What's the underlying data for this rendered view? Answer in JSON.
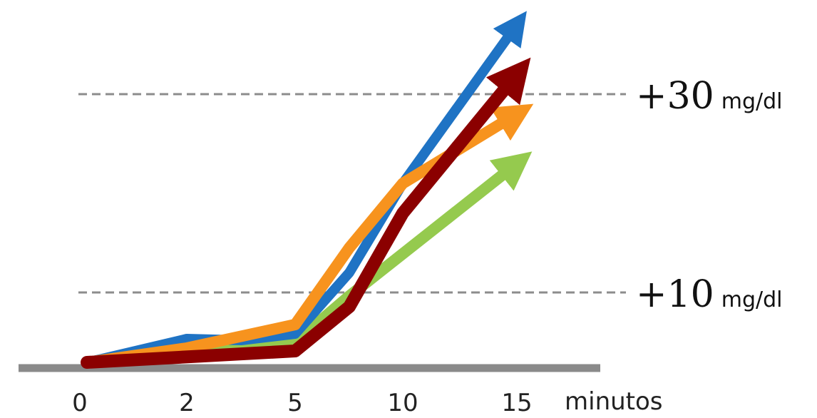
{
  "chart_data": {
    "type": "line",
    "title": "",
    "xlabel": "minutos",
    "ylabel": "",
    "x_ticks": [
      "0",
      "2",
      "5",
      "10",
      "15"
    ],
    "reference_lines": [
      {
        "value": 10,
        "num_text": "+10",
        "unit_text": "mg/dl"
      },
      {
        "value": 30,
        "num_text": "+30",
        "unit_text": "mg/dl"
      }
    ],
    "series": [
      {
        "color": "#1f73c4",
        "points": [
          [
            0,
            0
          ],
          [
            2,
            3.5
          ],
          [
            3,
            3.3
          ],
          [
            5,
            4.2
          ],
          [
            8,
            12
          ],
          [
            10,
            21
          ],
          [
            15,
            37
          ]
        ]
      },
      {
        "color": "#f7931e",
        "points": [
          [
            0,
            0
          ],
          [
            2,
            2.2
          ],
          [
            5,
            5.5
          ],
          [
            8,
            14.5
          ],
          [
            10,
            21
          ],
          [
            15,
            28
          ]
        ]
      },
      {
        "color": "#8dc63f",
        "points": [
          [
            0,
            0
          ],
          [
            2,
            2
          ],
          [
            5,
            3
          ],
          [
            8,
            9.5
          ],
          [
            15,
            23
          ]
        ]
      },
      {
        "color": "#8b0000",
        "points": [
          [
            0,
            0
          ],
          [
            5,
            1.8
          ],
          [
            8,
            8
          ],
          [
            10,
            18
          ],
          [
            15,
            32
          ]
        ]
      }
    ],
    "grid": false
  }
}
